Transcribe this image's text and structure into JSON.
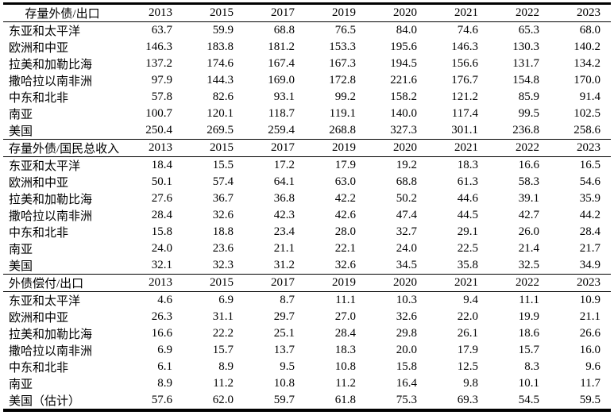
{
  "table": {
    "years": [
      "2013",
      "2015",
      "2017",
      "2019",
      "2020",
      "2021",
      "2022",
      "2023"
    ],
    "sections": [
      {
        "header": "存量外债/出口",
        "header_centered": true,
        "rows": [
          {
            "label": "东亚和太平洋",
            "values": [
              "63.7",
              "59.9",
              "68.8",
              "76.5",
              "84.0",
              "74.6",
              "65.3",
              "68.0"
            ]
          },
          {
            "label": "欧洲和中亚",
            "values": [
              "146.3",
              "183.8",
              "181.2",
              "153.3",
              "195.6",
              "146.3",
              "130.3",
              "140.2"
            ]
          },
          {
            "label": "拉美和加勒比海",
            "values": [
              "137.2",
              "174.6",
              "167.4",
              "167.3",
              "194.5",
              "156.6",
              "131.7",
              "134.2"
            ]
          },
          {
            "label": "撒哈拉以南非洲",
            "values": [
              "97.9",
              "144.3",
              "169.0",
              "172.8",
              "221.6",
              "176.7",
              "154.8",
              "170.0"
            ]
          },
          {
            "label": "中东和北非",
            "values": [
              "57.8",
              "82.6",
              "93.1",
              "99.2",
              "158.2",
              "121.2",
              "85.9",
              "91.4"
            ]
          },
          {
            "label": "南亚",
            "values": [
              "100.7",
              "120.1",
              "118.7",
              "119.1",
              "140.0",
              "117.4",
              "99.5",
              "102.5"
            ]
          },
          {
            "label": "美国",
            "values": [
              "250.4",
              "269.5",
              "259.4",
              "268.8",
              "327.3",
              "301.1",
              "236.8",
              "258.6"
            ]
          }
        ]
      },
      {
        "header": "存量外债/国民总收入",
        "header_centered": false,
        "rows": [
          {
            "label": "东亚和太平洋",
            "values": [
              "18.4",
              "15.5",
              "17.2",
              "17.9",
              "19.2",
              "18.3",
              "16.6",
              "16.5"
            ]
          },
          {
            "label": "欧洲和中亚",
            "values": [
              "50.1",
              "57.4",
              "64.1",
              "63.0",
              "68.8",
              "61.3",
              "58.3",
              "54.6"
            ]
          },
          {
            "label": "拉美和加勒比海",
            "values": [
              "27.6",
              "36.7",
              "36.8",
              "42.2",
              "50.2",
              "44.6",
              "39.1",
              "35.9"
            ]
          },
          {
            "label": "撒哈拉以南非洲",
            "values": [
              "28.4",
              "32.6",
              "42.3",
              "42.6",
              "47.4",
              "44.5",
              "42.7",
              "44.2"
            ]
          },
          {
            "label": "中东和北非",
            "values": [
              "15.8",
              "18.8",
              "23.4",
              "28.0",
              "32.7",
              "29.1",
              "26.0",
              "28.4"
            ]
          },
          {
            "label": "南亚",
            "values": [
              "24.0",
              "23.6",
              "21.1",
              "22.1",
              "24.0",
              "22.5",
              "21.4",
              "21.7"
            ]
          },
          {
            "label": "美国",
            "values": [
              "32.1",
              "32.3",
              "31.2",
              "32.6",
              "34.5",
              "35.8",
              "32.5",
              "34.9"
            ]
          }
        ]
      },
      {
        "header": "外债偿付/出口",
        "header_centered": false,
        "rows": [
          {
            "label": "东亚和太平洋",
            "values": [
              "4.6",
              "6.9",
              "8.7",
              "11.1",
              "10.3",
              "9.4",
              "11.1",
              "10.9"
            ]
          },
          {
            "label": "欧洲和中亚",
            "values": [
              "26.3",
              "31.1",
              "29.7",
              "27.0",
              "32.6",
              "22.0",
              "19.9",
              "21.1"
            ]
          },
          {
            "label": "拉美和加勒比海",
            "values": [
              "16.6",
              "22.2",
              "25.1",
              "28.4",
              "29.8",
              "26.1",
              "18.6",
              "26.6"
            ]
          },
          {
            "label": "撒哈拉以南非洲",
            "values": [
              "6.9",
              "15.7",
              "13.7",
              "18.3",
              "20.0",
              "17.9",
              "15.7",
              "16.0"
            ]
          },
          {
            "label": "中东和北非",
            "values": [
              "6.1",
              "8.9",
              "9.5",
              "10.8",
              "15.8",
              "12.5",
              "8.3",
              "9.6"
            ]
          },
          {
            "label": "南亚",
            "values": [
              "8.9",
              "11.2",
              "10.8",
              "11.2",
              "16.4",
              "9.8",
              "10.1",
              "11.7"
            ]
          },
          {
            "label": "美国（估计）",
            "values": [
              "57.6",
              "62.0",
              "59.7",
              "61.8",
              "75.3",
              "69.3",
              "54.5",
              "59.5"
            ]
          }
        ]
      }
    ]
  }
}
